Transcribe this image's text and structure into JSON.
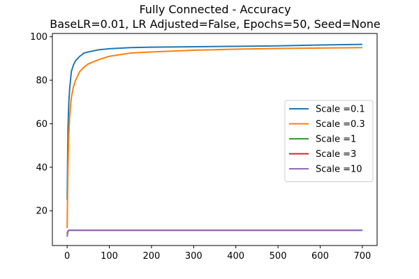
{
  "chart_data": {
    "type": "line",
    "title": "Fully Connected - Accuracy",
    "subtitle": "BaseLR=0.01, LR Adjusted=False, Epochs=50, Seed=None",
    "xlabel": "",
    "ylabel": "",
    "xlim": [
      -35,
      735
    ],
    "ylim": [
      4,
      101.5
    ],
    "xticks": [
      0,
      100,
      200,
      300,
      400,
      500,
      600,
      700
    ],
    "yticks": [
      20,
      40,
      60,
      80,
      100
    ],
    "grid": false,
    "legend": "center-right",
    "series": [
      {
        "name": "Scale =0.1",
        "color": "#1f77b4",
        "x": [
          0,
          2,
          4,
          6,
          8,
          10,
          15,
          20,
          30,
          40,
          50,
          75,
          100,
          150,
          200,
          300,
          400,
          500,
          600,
          700
        ],
        "y": [
          25,
          58,
          70,
          76,
          80,
          84,
          87,
          89,
          91,
          92.5,
          93,
          94,
          94.5,
          95,
          95.2,
          95.4,
          95.6,
          95.8,
          96.2,
          96.5
        ]
      },
      {
        "name": "Scale =0.3",
        "color": "#ff7f0e",
        "x": [
          0,
          2,
          4,
          6,
          8,
          10,
          15,
          20,
          30,
          40,
          50,
          75,
          100,
          150,
          200,
          300,
          400,
          500,
          600,
          700
        ],
        "y": [
          12,
          40,
          55,
          63,
          68,
          72,
          77,
          80,
          84,
          86,
          87.5,
          89.5,
          91,
          92.5,
          93,
          93.8,
          94.3,
          94.6,
          94.8,
          95
        ]
      },
      {
        "name": "Scale =1",
        "color": "#2ca02c",
        "x": [
          0,
          2,
          4,
          700
        ],
        "y": [
          9,
          10.5,
          11,
          11
        ]
      },
      {
        "name": "Scale =3",
        "color": "#d62728",
        "x": [
          0,
          2,
          4,
          700
        ],
        "y": [
          9.5,
          10.7,
          11,
          11
        ]
      },
      {
        "name": "Scale =10",
        "color": "#9467bd",
        "x": [
          0,
          2,
          4,
          700
        ],
        "y": [
          8,
          10.5,
          11,
          11
        ]
      }
    ]
  }
}
